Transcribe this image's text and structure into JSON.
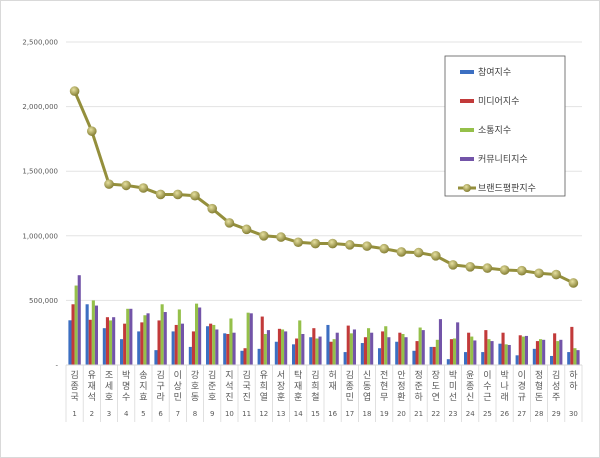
{
  "chart_data": {
    "type": "bar",
    "title": "",
    "xlabel": "",
    "ylabel": "",
    "ylim": [
      0,
      2500000
    ],
    "y_ticks": [
      "-",
      "500,000",
      "1,000,000",
      "1,500,000",
      "2,000,000",
      "2,500,000"
    ],
    "y_tick_values": [
      0,
      500000,
      1000000,
      1500000,
      2000000,
      2500000
    ],
    "grid": true,
    "legend_position": "top-right",
    "categories": [
      "김종국",
      "유재석",
      "조세호",
      "박명수",
      "송지효",
      "김구라",
      "이상민",
      "강호동",
      "김준호",
      "지석진",
      "김국진",
      "유희열",
      "서장훈",
      "탁재훈",
      "김희철",
      "허재",
      "김종민",
      "신동엽",
      "전현무",
      "안정환",
      "정준하",
      "장도연",
      "박미선",
      "윤종신",
      "이수근",
      "박나래",
      "이경규",
      "정형돈",
      "김성주",
      "하하"
    ],
    "ranks": [
      "1",
      "2",
      "3",
      "4",
      "5",
      "6",
      "7",
      "8",
      "9",
      "10",
      "11",
      "12",
      "13",
      "14",
      "15",
      "16",
      "17",
      "18",
      "19",
      "20",
      "21",
      "22",
      "23",
      "24",
      "25",
      "26",
      "27",
      "28",
      "29",
      "30"
    ],
    "series": [
      {
        "name": "참여지수",
        "type": "bar",
        "color": "#3c6fc2",
        "values": [
          346000,
          470000,
          285000,
          200000,
          260000,
          115000,
          260000,
          140000,
          300000,
          245000,
          110000,
          125000,
          180000,
          160000,
          215000,
          310000,
          100000,
          170000,
          130000,
          180000,
          110000,
          140000,
          45000,
          100000,
          100000,
          165000,
          75000,
          125000,
          70000,
          100000
        ]
      },
      {
        "name": "미디어지수",
        "type": "bar",
        "color": "#c23a3a",
        "values": [
          470000,
          350000,
          370000,
          320000,
          330000,
          345000,
          310000,
          260000,
          320000,
          240000,
          130000,
          375000,
          280000,
          205000,
          285000,
          180000,
          305000,
          215000,
          260000,
          250000,
          185000,
          140000,
          200000,
          250000,
          270000,
          250000,
          230000,
          185000,
          245000,
          295000
        ]
      },
      {
        "name": "소통지수",
        "type": "bar",
        "color": "#95c04a",
        "values": [
          615000,
          500000,
          345000,
          435000,
          385000,
          470000,
          430000,
          475000,
          310000,
          360000,
          405000,
          240000,
          275000,
          345000,
          205000,
          200000,
          245000,
          285000,
          300000,
          240000,
          290000,
          195000,
          205000,
          220000,
          200000,
          160000,
          220000,
          200000,
          185000,
          130000
        ]
      },
      {
        "name": "커뮤니티지수",
        "type": "bar",
        "color": "#7354a8",
        "values": [
          695000,
          460000,
          370000,
          435000,
          400000,
          410000,
          320000,
          445000,
          275000,
          250000,
          400000,
          270000,
          260000,
          240000,
          220000,
          250000,
          275000,
          250000,
          215000,
          215000,
          270000,
          355000,
          330000,
          190000,
          185000,
          155000,
          225000,
          195000,
          195000,
          115000
        ]
      },
      {
        "name": "브랜드평판지수",
        "type": "line",
        "color": "#948f3c",
        "values": [
          2120000,
          1810000,
          1400000,
          1390000,
          1370000,
          1320000,
          1320000,
          1310000,
          1210000,
          1100000,
          1050000,
          1000000,
          990000,
          950000,
          940000,
          940000,
          930000,
          920000,
          900000,
          875000,
          870000,
          845000,
          775000,
          760000,
          750000,
          735000,
          730000,
          710000,
          700000,
          635000
        ]
      }
    ]
  }
}
